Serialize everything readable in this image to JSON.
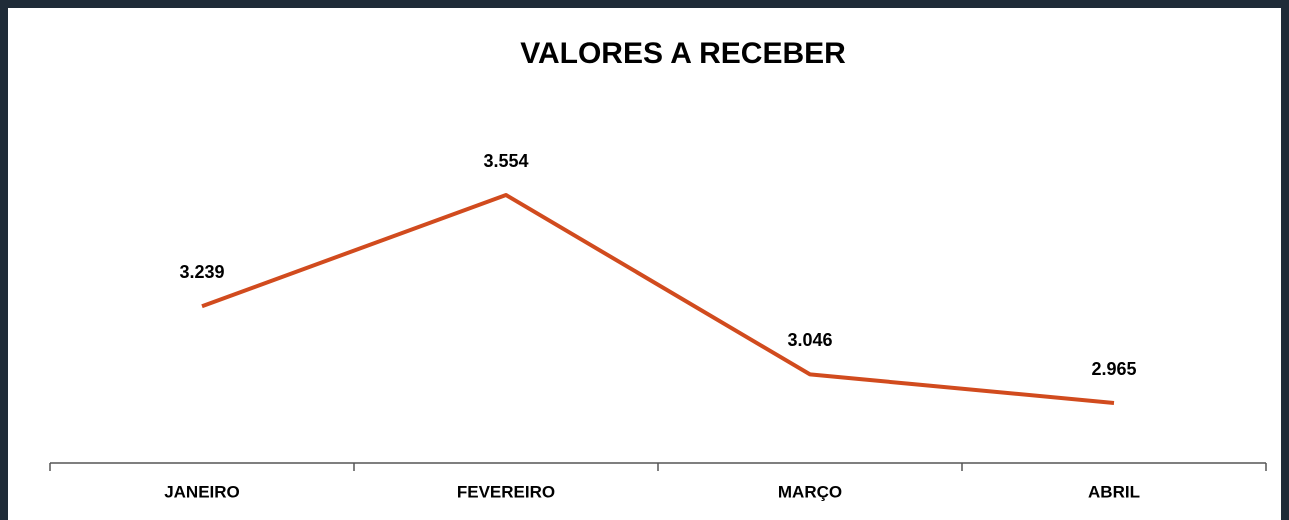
{
  "chart_data": {
    "type": "line",
    "title": "VALORES A RECEBER",
    "categories": [
      "JANEIRO",
      "FEVEREIRO",
      "MARÇO",
      "ABRIL"
    ],
    "series": [
      {
        "color": "#d14b1e",
        "values": [
          3239,
          3554,
          3046,
          2965
        ],
        "value_labels": [
          "3.239",
          "3.554",
          "3.046",
          "2.965"
        ]
      }
    ]
  }
}
